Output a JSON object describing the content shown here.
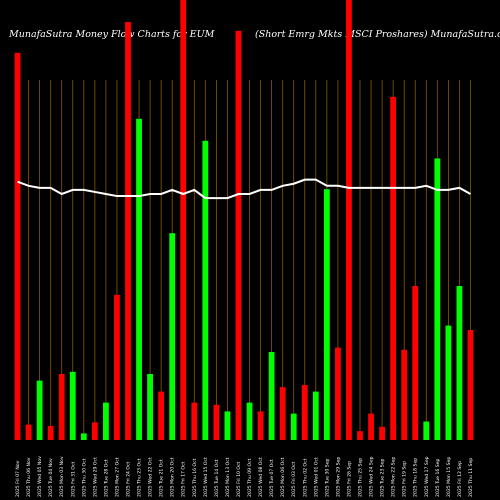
{
  "chart_data": {
    "type": "bar",
    "title_left": "MunafaSutra  Money Flow  Charts for EUM",
    "title_right": "(Short Emrg Mkts MSCI Proshares) MunafaSutra.com",
    "categories": [
      "2025 Fri 07 Nov",
      "2025 Thu 06 Nov",
      "2025 Wed 05 Nov",
      "2025 Tue 04 Nov",
      "2025 Mon 03 Nov",
      "2025 Fri 31 Oct",
      "2025 Thu 30 Oct",
      "2025 Wed 29 Oct",
      "2025 Tue 28 Oct",
      "2025 Mon 27 Oct",
      "2025 Fri 24 Oct",
      "2025 Thu 23 Oct",
      "2025 Wed 22 Oct",
      "2025 Tue 21 Oct",
      "2025 Mon 20 Oct",
      "2025 Fri 17 Oct",
      "2025 Thu 16 Oct",
      "2025 Wed 15 Oct",
      "2025 Tue 14 Oct",
      "2025 Mon 13 Oct",
      "2025 Fri 10 Oct",
      "2025 Thu 09 Oct",
      "2025 Wed 08 Oct",
      "2025 Tue 07 Oct",
      "2025 Mon 06 Oct",
      "2025 Fri 03 Oct",
      "2025 Thu 02 Oct",
      "2025 Wed 01 Oct",
      "2025 Tue 30 Sep",
      "2025 Mon 29 Sep",
      "2025 Fri 26 Sep",
      "2025 Thu 25 Sep",
      "2025 Wed 24 Sep",
      "2025 Tue 23 Sep",
      "2025 Mon 22 Sep",
      "2025 Fri 19 Sep",
      "2025 Thu 18 Sep",
      "2025 Wed 17 Sep",
      "2025 Tue 16 Sep",
      "2025 Mon 15 Sep",
      "2025 Fri 12 Sep",
      "2025 Thu 11 Sep"
    ],
    "values": [
      88,
      3.5,
      13.5,
      3.2,
      15,
      15.5,
      1.5,
      4,
      8.5,
      33,
      95,
      73,
      15,
      11,
      47,
      100,
      8.5,
      68,
      8,
      6.5,
      93,
      8.5,
      6.5,
      20,
      12,
      6,
      12.5,
      11,
      57,
      21,
      100,
      2,
      6,
      3,
      78,
      20.5,
      35,
      4.2,
      64,
      26,
      35,
      25
    ],
    "colors": [
      "red",
      "red",
      "green",
      "red",
      "red",
      "green",
      "green",
      "red",
      "green",
      "red",
      "red",
      "green",
      "green",
      "red",
      "green",
      "red",
      "red",
      "green",
      "red",
      "green",
      "red",
      "green",
      "red",
      "green",
      "red",
      "green",
      "red",
      "green",
      "green",
      "red",
      "red",
      "red",
      "red",
      "red",
      "red",
      "red",
      "red",
      "green",
      "green",
      "green",
      "green",
      "red"
    ],
    "line": [
      63,
      62,
      61.5,
      61.5,
      60,
      61,
      61,
      60.5,
      60,
      59.5,
      59.5,
      59.5,
      60,
      60,
      61,
      60,
      61,
      59,
      59,
      59,
      60,
      60,
      61,
      61,
      62,
      62.5,
      63.5,
      63.5,
      62,
      62,
      61.5,
      61.5,
      61.5,
      61.5,
      61.5,
      61.5,
      61.5,
      62,
      61,
      61,
      61.5,
      60
    ],
    "ylim": [
      0,
      100
    ],
    "grid": true,
    "colors_hex": {
      "background": "#000000",
      "grid": "#8b5a00",
      "green": "#00ff00",
      "red": "#ff0000",
      "line": "#ffffff",
      "text": "#ffffff"
    }
  }
}
